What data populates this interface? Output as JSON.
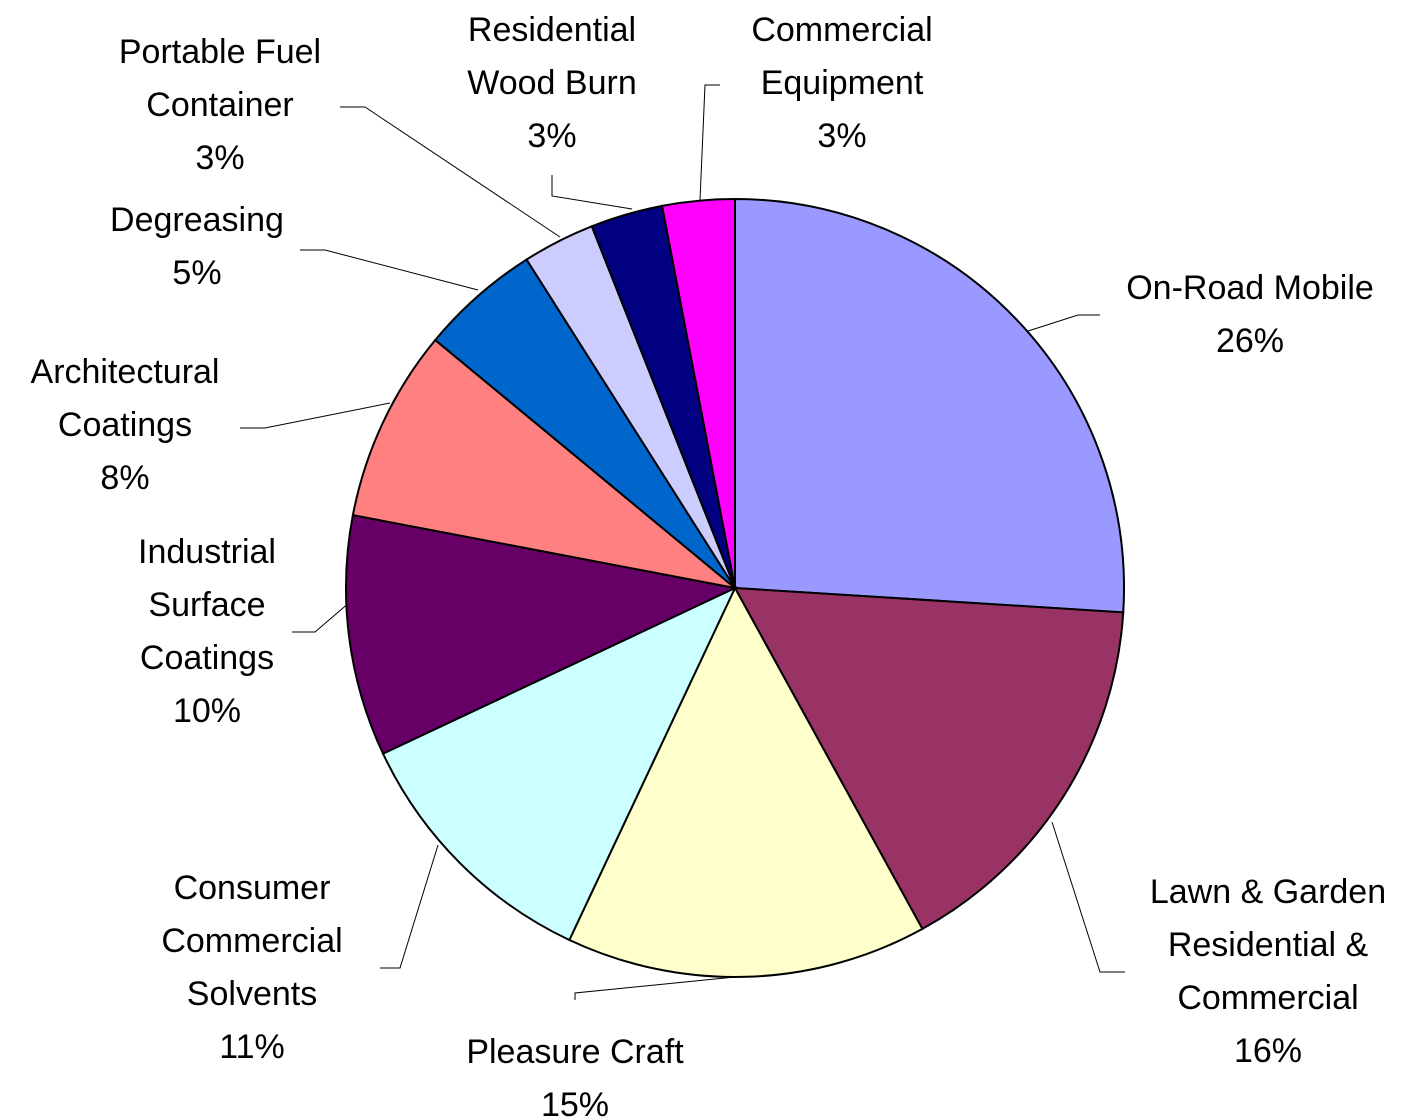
{
  "chart_data": {
    "type": "pie",
    "categories": [
      "On-Road Mobile",
      "Lawn & Garden Residential & Commercial",
      "Pleasure Craft",
      "Consumer Commercial Solvents",
      "Industrial Surface Coatings",
      "Architectural Coatings",
      "Degreasing",
      "Portable Fuel Container",
      "Residential Wood Burn",
      "Commercial Equipment"
    ],
    "values": [
      26,
      16,
      15,
      11,
      10,
      8,
      5,
      3,
      3,
      3
    ],
    "value_labels": [
      "26%",
      "16%",
      "15%",
      "11%",
      "10%",
      "8%",
      "5%",
      "3%",
      "3%",
      "3%"
    ],
    "colors": [
      "#9999ff",
      "#993366",
      "#ffffcc",
      "#ccffff",
      "#660066",
      "#ff8080",
      "#0066cc",
      "#ccccff",
      "#000080",
      "#ff00ff"
    ]
  }
}
